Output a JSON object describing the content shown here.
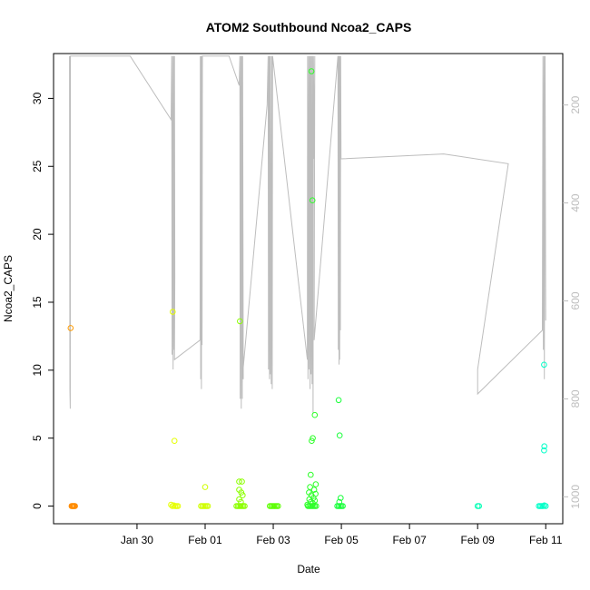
{
  "chart_data": {
    "type": "scatter",
    "title": "ATOM2 Southbound Ncoa2_CAPS",
    "xlabel": "Date",
    "ylabel": "Ncoa2_CAPS",
    "x_tick_labels": [
      "Jan 30",
      "Feb 01",
      "Feb 03",
      "Feb 05",
      "Feb 07",
      "Feb 09",
      "Feb 11"
    ],
    "x_tick_days": [
      1,
      3,
      5,
      7,
      9,
      11,
      13
    ],
    "xlim_days": [
      -1.45,
      13.5
    ],
    "ylim": [
      -1.3,
      33.3
    ],
    "y_ticks": [
      0,
      5,
      10,
      15,
      20,
      25,
      30
    ],
    "y2_ticks": [
      200,
      400,
      600,
      800,
      1000
    ],
    "y2lim": [
      95,
      1055
    ],
    "y2_reversed": true,
    "grid": false,
    "legend": "none",
    "colors": {
      "depth_line": "#bdbdbd",
      "axis": "#000000",
      "right_axis": "#bdbdbd"
    },
    "points": [
      {
        "x": -0.95,
        "y": 13.1,
        "c": "#ff9a00"
      },
      {
        "x": -0.92,
        "y": 0,
        "c": "#ff8c00"
      },
      {
        "x": -0.9,
        "y": 0,
        "c": "#ff8c00"
      },
      {
        "x": -0.88,
        "y": 0,
        "c": "#ff8c00"
      },
      {
        "x": -0.86,
        "y": 0,
        "c": "#ff8c00"
      },
      {
        "x": -0.84,
        "y": 0,
        "c": "#ff8c00"
      },
      {
        "x": -0.82,
        "y": 0,
        "c": "#ff8c00"
      },
      {
        "x": 2.05,
        "y": 14.3,
        "c": "#e6ff00"
      },
      {
        "x": 2.1,
        "y": 4.8,
        "c": "#e6ff00"
      },
      {
        "x": 2.0,
        "y": 0.1,
        "c": "#e6ff00"
      },
      {
        "x": 2.04,
        "y": 0,
        "c": "#e6ff00"
      },
      {
        "x": 2.08,
        "y": 0.05,
        "c": "#e6ff00"
      },
      {
        "x": 2.12,
        "y": 0,
        "c": "#e6ff00"
      },
      {
        "x": 2.16,
        "y": 0,
        "c": "#e6ff00"
      },
      {
        "x": 2.2,
        "y": 0,
        "c": "#e6ff00"
      },
      {
        "x": 3.0,
        "y": 1.4,
        "c": "#d0ff00"
      },
      {
        "x": 2.88,
        "y": 0,
        "c": "#d0ff00"
      },
      {
        "x": 2.92,
        "y": 0,
        "c": "#d0ff00"
      },
      {
        "x": 2.96,
        "y": 0,
        "c": "#d0ff00"
      },
      {
        "x": 3.0,
        "y": 0,
        "c": "#d0ff00"
      },
      {
        "x": 3.04,
        "y": 0,
        "c": "#d0ff00"
      },
      {
        "x": 3.08,
        "y": 0,
        "c": "#d0ff00"
      },
      {
        "x": 4.02,
        "y": 13.6,
        "c": "#8cff00"
      },
      {
        "x": 4.0,
        "y": 1.8,
        "c": "#8cff00"
      },
      {
        "x": 4.08,
        "y": 1.8,
        "c": "#8cff00"
      },
      {
        "x": 4.0,
        "y": 1.2,
        "c": "#8cff00"
      },
      {
        "x": 4.06,
        "y": 1.0,
        "c": "#8cff00"
      },
      {
        "x": 4.1,
        "y": 0.8,
        "c": "#8cff00"
      },
      {
        "x": 4.0,
        "y": 0.5,
        "c": "#8cff00"
      },
      {
        "x": 4.05,
        "y": 0.3,
        "c": "#8cff00"
      },
      {
        "x": 3.92,
        "y": 0,
        "c": "#8cff00"
      },
      {
        "x": 3.96,
        "y": 0,
        "c": "#8cff00"
      },
      {
        "x": 4.0,
        "y": 0,
        "c": "#8cff00"
      },
      {
        "x": 4.04,
        "y": 0,
        "c": "#8cff00"
      },
      {
        "x": 4.08,
        "y": 0,
        "c": "#8cff00"
      },
      {
        "x": 4.12,
        "y": 0,
        "c": "#8cff00"
      },
      {
        "x": 4.16,
        "y": 0,
        "c": "#8cff00"
      },
      {
        "x": 4.9,
        "y": 0,
        "c": "#5cff00"
      },
      {
        "x": 4.94,
        "y": 0,
        "c": "#5cff00"
      },
      {
        "x": 4.98,
        "y": 0,
        "c": "#5cff00"
      },
      {
        "x": 5.02,
        "y": 0,
        "c": "#5cff00"
      },
      {
        "x": 5.06,
        "y": 0,
        "c": "#5cff00"
      },
      {
        "x": 5.1,
        "y": 0,
        "c": "#5cff00"
      },
      {
        "x": 5.14,
        "y": 0,
        "c": "#5cff00"
      },
      {
        "x": 6.12,
        "y": 32.0,
        "c": "#2dff29"
      },
      {
        "x": 6.15,
        "y": 22.5,
        "c": "#2dff29"
      },
      {
        "x": 6.22,
        "y": 6.7,
        "c": "#2dff29"
      },
      {
        "x": 6.16,
        "y": 5.0,
        "c": "#2dff29"
      },
      {
        "x": 6.13,
        "y": 4.8,
        "c": "#2dff29"
      },
      {
        "x": 6.1,
        "y": 2.3,
        "c": "#2dff29"
      },
      {
        "x": 6.25,
        "y": 1.6,
        "c": "#2dff29"
      },
      {
        "x": 6.08,
        "y": 1.4,
        "c": "#2dff29"
      },
      {
        "x": 6.2,
        "y": 1.2,
        "c": "#2dff29"
      },
      {
        "x": 6.05,
        "y": 1.0,
        "c": "#2dff29"
      },
      {
        "x": 6.24,
        "y": 0.9,
        "c": "#2dff29"
      },
      {
        "x": 6.12,
        "y": 0.8,
        "c": "#2dff29"
      },
      {
        "x": 6.18,
        "y": 0.6,
        "c": "#2dff29"
      },
      {
        "x": 6.06,
        "y": 0.5,
        "c": "#2dff29"
      },
      {
        "x": 6.22,
        "y": 0.4,
        "c": "#2dff29"
      },
      {
        "x": 6.1,
        "y": 0.3,
        "c": "#2dff29"
      },
      {
        "x": 6.16,
        "y": 0.2,
        "c": "#2dff29"
      },
      {
        "x": 6.0,
        "y": 0.1,
        "c": "#2dff29"
      },
      {
        "x": 6.02,
        "y": 0,
        "c": "#2dff29"
      },
      {
        "x": 6.06,
        "y": 0,
        "c": "#2dff29"
      },
      {
        "x": 6.1,
        "y": 0,
        "c": "#2dff29"
      },
      {
        "x": 6.14,
        "y": 0,
        "c": "#2dff29"
      },
      {
        "x": 6.18,
        "y": 0,
        "c": "#2dff29"
      },
      {
        "x": 6.22,
        "y": 0,
        "c": "#2dff29"
      },
      {
        "x": 6.26,
        "y": 0,
        "c": "#2dff29"
      },
      {
        "x": 6.92,
        "y": 7.8,
        "c": "#1aff3c"
      },
      {
        "x": 6.95,
        "y": 5.2,
        "c": "#1aff3c"
      },
      {
        "x": 6.98,
        "y": 0.6,
        "c": "#1aff3c"
      },
      {
        "x": 6.94,
        "y": 0.3,
        "c": "#1aff3c"
      },
      {
        "x": 6.88,
        "y": 0,
        "c": "#1aff3c"
      },
      {
        "x": 6.92,
        "y": 0,
        "c": "#1aff3c"
      },
      {
        "x": 6.96,
        "y": 0,
        "c": "#1aff3c"
      },
      {
        "x": 7.0,
        "y": 0,
        "c": "#1aff3c"
      },
      {
        "x": 7.04,
        "y": 0,
        "c": "#1aff3c"
      },
      {
        "x": 11.0,
        "y": 0,
        "c": "#00ffb4"
      },
      {
        "x": 11.04,
        "y": 0,
        "c": "#00ffb4"
      },
      {
        "x": 12.95,
        "y": 10.4,
        "c": "#00ffc8"
      },
      {
        "x": 12.96,
        "y": 4.4,
        "c": "#00ffc8"
      },
      {
        "x": 12.95,
        "y": 4.1,
        "c": "#00ffc8"
      },
      {
        "x": 12.8,
        "y": 0,
        "c": "#00ffc8"
      },
      {
        "x": 12.84,
        "y": 0,
        "c": "#00ffc8"
      },
      {
        "x": 12.88,
        "y": 0,
        "c": "#00ffc8"
      },
      {
        "x": 12.92,
        "y": 0,
        "c": "#00ffc8"
      },
      {
        "x": 12.96,
        "y": 0.05,
        "c": "#00ffc8"
      },
      {
        "x": 13.0,
        "y": 0,
        "c": "#00ffc8"
      }
    ],
    "depth_track": [
      [
        -0.98,
        100
      ],
      [
        -0.97,
        780
      ],
      [
        -0.96,
        820
      ],
      [
        -0.955,
        100
      ],
      [
        0.8,
        100
      ],
      [
        2.0,
        230
      ],
      [
        2.02,
        100
      ],
      [
        2.03,
        710
      ],
      [
        2.05,
        100
      ],
      [
        2.06,
        740
      ],
      [
        2.08,
        100
      ],
      [
        2.09,
        700
      ],
      [
        2.1,
        100
      ],
      [
        2.11,
        550
      ],
      [
        2.1,
        720
      ],
      [
        2.85,
        680
      ],
      [
        2.86,
        100
      ],
      [
        2.87,
        760
      ],
      [
        2.88,
        100
      ],
      [
        2.89,
        780
      ],
      [
        2.9,
        100
      ],
      [
        2.91,
        690
      ],
      [
        2.92,
        100
      ],
      [
        2.93,
        100
      ],
      [
        3.7,
        100
      ],
      [
        4.0,
        160
      ],
      [
        4.02,
        100
      ],
      [
        4.03,
        800
      ],
      [
        4.05,
        100
      ],
      [
        4.06,
        820
      ],
      [
        4.08,
        100
      ],
      [
        4.09,
        800
      ],
      [
        4.1,
        100
      ],
      [
        4.12,
        760
      ],
      [
        4.1,
        750
      ],
      [
        4.82,
        200
      ],
      [
        4.85,
        100
      ],
      [
        4.86,
        740
      ],
      [
        4.88,
        100
      ],
      [
        4.89,
        760
      ],
      [
        4.9,
        100
      ],
      [
        4.91,
        750
      ],
      [
        4.92,
        100
      ],
      [
        4.94,
        770
      ],
      [
        4.96,
        100
      ],
      [
        4.97,
        780
      ],
      [
        4.98,
        100
      ],
      [
        6.0,
        720
      ],
      [
        6.01,
        100
      ],
      [
        6.02,
        760
      ],
      [
        6.04,
        100
      ],
      [
        6.05,
        740
      ],
      [
        6.07,
        100
      ],
      [
        6.08,
        780
      ],
      [
        6.1,
        100
      ],
      [
        6.11,
        750
      ],
      [
        6.13,
        100
      ],
      [
        6.14,
        770
      ],
      [
        6.16,
        100
      ],
      [
        6.17,
        830
      ],
      [
        6.18,
        100
      ],
      [
        6.2,
        310
      ],
      [
        6.22,
        100
      ],
      [
        6.2,
        680
      ],
      [
        6.9,
        100
      ],
      [
        6.91,
        700
      ],
      [
        6.92,
        100
      ],
      [
        6.93,
        730
      ],
      [
        6.94,
        100
      ],
      [
        6.95,
        720
      ],
      [
        6.96,
        100
      ],
      [
        6.97,
        660
      ],
      [
        6.98,
        100
      ],
      [
        6.99,
        310
      ],
      [
        10.0,
        300
      ],
      [
        11.9,
        320
      ],
      [
        11.0,
        740
      ],
      [
        11.0,
        790
      ],
      [
        12.9,
        660
      ],
      [
        12.92,
        100
      ],
      [
        12.93,
        700
      ],
      [
        12.95,
        100
      ],
      [
        12.96,
        760
      ],
      [
        12.98,
        100
      ],
      [
        13.0,
        640
      ]
    ]
  }
}
